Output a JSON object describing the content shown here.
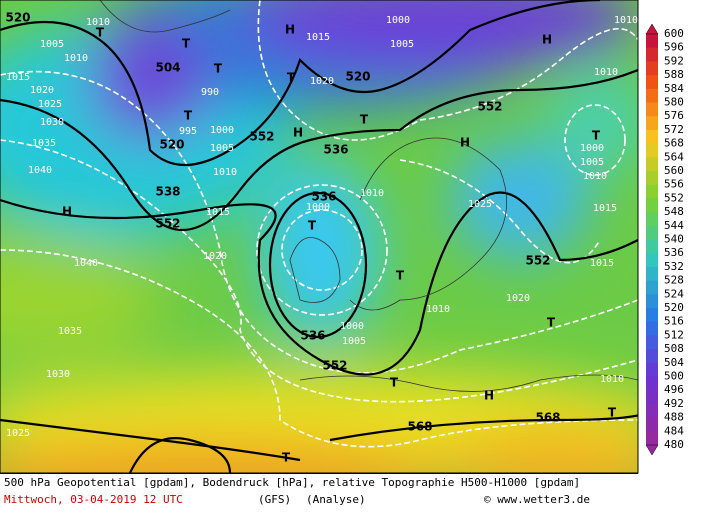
{
  "map": {
    "contour_labels": [
      "520",
      "504",
      "520",
      "538",
      "552",
      "552",
      "536",
      "520",
      "552",
      "536",
      "536",
      "552",
      "552",
      "568",
      "568"
    ],
    "pressure_labels": [
      "1010",
      "1005",
      "1010",
      "1015",
      "1020",
      "1025",
      "1030",
      "1035",
      "1040",
      "1040",
      "1035",
      "1030",
      "1025",
      "1000",
      "1005",
      "1015",
      "1020",
      "1000",
      "1005",
      "1010",
      "1015",
      "1020",
      "990",
      "995",
      "1010",
      "1000",
      "1005",
      "1000",
      "1025",
      "1020",
      "1010",
      "1015",
      "1015",
      "1010",
      "1005",
      "1000",
      "1010",
      "1010",
      "1010"
    ],
    "high_markers": [
      "H",
      "H",
      "H",
      "H",
      "H",
      "H"
    ],
    "low_markers": [
      "T",
      "T",
      "T",
      "T",
      "T",
      "T",
      "T",
      "T",
      "T",
      "T",
      "T",
      "T",
      "T"
    ]
  },
  "legend": {
    "values": [
      "600",
      "596",
      "592",
      "588",
      "584",
      "580",
      "576",
      "572",
      "568",
      "564",
      "560",
      "556",
      "552",
      "548",
      "544",
      "540",
      "536",
      "532",
      "528",
      "524",
      "520",
      "516",
      "512",
      "508",
      "504",
      "500",
      "496",
      "492",
      "488",
      "484",
      "480"
    ]
  },
  "footer": {
    "description": "500 hPa Geopotential [gpdam], Bodendruck [hPa], relative Topographie H500-H1000 [gpdam]",
    "date": "Mittwoch, 03-04-2019  12 UTC",
    "model": "(GFS)",
    "run": "(Analyse)",
    "source": "© www.wetter3.de"
  }
}
